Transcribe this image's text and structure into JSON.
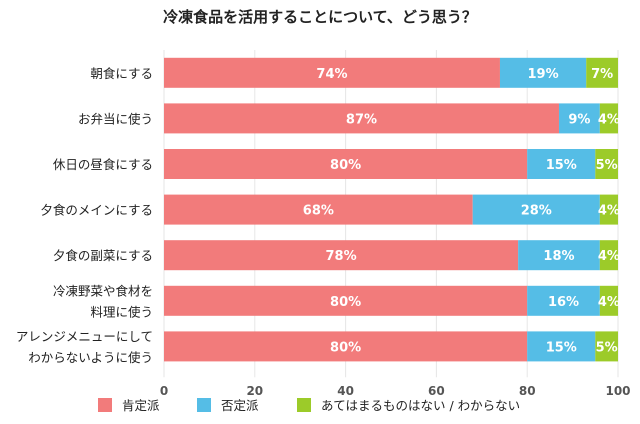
{
  "chart_data": {
    "type": "bar",
    "orientation": "horizontal",
    "stacked": true,
    "title": "冷凍食品を活用することについて、どう思う？",
    "categories": [
      [
        "朝食にする"
      ],
      [
        "お弁当に使う"
      ],
      [
        "休日の昼食にする"
      ],
      [
        "夕食のメインにする"
      ],
      [
        "夕食の副菜にする"
      ],
      [
        "冷凍野菜や食材を",
        "料理に使う"
      ],
      [
        "アレンジメニューにして",
        "わからないように使う"
      ]
    ],
    "series": [
      {
        "name": "肯定派",
        "color": "#f27b7b",
        "values": [
          74,
          87,
          80,
          68,
          78,
          80,
          80
        ]
      },
      {
        "name": "否定派",
        "color": "#55bde6",
        "values": [
          19,
          9,
          15,
          28,
          18,
          16,
          15
        ]
      },
      {
        "name": "あてはまるものはない / わからない",
        "color": "#9ccb29",
        "values": [
          7,
          4,
          5,
          4,
          4,
          4,
          5
        ]
      }
    ],
    "xlim": [
      0,
      100
    ],
    "xticks": [
      0,
      20,
      40,
      60,
      80,
      100
    ],
    "label_suffix": "%",
    "grid": true,
    "legend_position": "bottom"
  }
}
